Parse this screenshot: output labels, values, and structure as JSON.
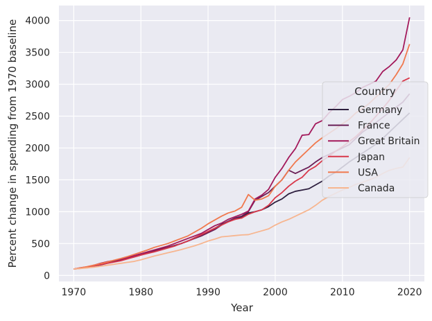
{
  "chart_data": {
    "type": "line",
    "title": "",
    "xlabel": "Year",
    "ylabel": "Percent change in spending from 1970 baseline",
    "xlim": [
      1967.8,
      2022.2
    ],
    "ylim": [
      -95,
      4235
    ],
    "x_ticks": [
      1970,
      1980,
      1990,
      2000,
      2010,
      2020
    ],
    "y_ticks": [
      0,
      500,
      1000,
      1500,
      2000,
      2500,
      3000,
      3500,
      4000
    ],
    "grid": true,
    "legend": {
      "title": "Country",
      "placement": "center-right"
    },
    "years": [
      1970,
      1971,
      1972,
      1973,
      1974,
      1975,
      1976,
      1977,
      1978,
      1979,
      1980,
      1981,
      1982,
      1983,
      1984,
      1985,
      1986,
      1987,
      1988,
      1989,
      1990,
      1991,
      1992,
      1993,
      1994,
      1995,
      1996,
      1997,
      1998,
      1999,
      2000,
      2001,
      2002,
      2003,
      2004,
      2005,
      2006,
      2007,
      2008,
      2009,
      2010,
      2011,
      2012,
      2013,
      2014,
      2015,
      2016,
      2017,
      2018,
      2019,
      2020
    ],
    "series": [
      {
        "name": "Germany",
        "color": "#2d1e3e",
        "values": [
          100,
          115,
          130,
          150,
          175,
          200,
          220,
          240,
          265,
          295,
          330,
          360,
          390,
          415,
          440,
          470,
          500,
          540,
          590,
          640,
          680,
          740,
          800,
          850,
          880,
          920,
          980,
          1000,
          1030,
          1080,
          1150,
          1200,
          1280,
          1320,
          1340,
          1360,
          1420,
          1480,
          1560,
          1620,
          1700,
          1780,
          1850,
          1920,
          1990,
          2060,
          2150,
          2250,
          2350,
          2450,
          2550
        ]
      },
      {
        "name": "France",
        "color": "#6a1f56",
        "values": [
          100,
          110,
          125,
          145,
          165,
          190,
          215,
          240,
          265,
          290,
          320,
          350,
          380,
          410,
          440,
          470,
          500,
          540,
          580,
          620,
          670,
          720,
          790,
          850,
          900,
          930,
          1000,
          1180,
          1240,
          1300,
          1400,
          1500,
          1650,
          1600,
          1650,
          1700,
          1780,
          1850,
          1900,
          1950,
          2000,
          2050,
          2150,
          2250,
          2320,
          2400,
          2480,
          2560,
          2640,
          2720,
          2850
        ]
      },
      {
        "name": "Great Britain",
        "color": "#a3195b",
        "values": [
          100,
          120,
          135,
          160,
          190,
          215,
          235,
          255,
          280,
          310,
          340,
          370,
          400,
          430,
          460,
          500,
          540,
          580,
          620,
          660,
          720,
          780,
          820,
          880,
          920,
          960,
          1010,
          1200,
          1260,
          1350,
          1540,
          1680,
          1850,
          1990,
          2200,
          2210,
          2380,
          2430,
          2550,
          2650,
          2760,
          2810,
          2870,
          2950,
          3000,
          3050,
          3200,
          3280,
          3380,
          3540,
          4050
        ]
      },
      {
        "name": "Japan",
        "color": "#d8374a",
        "values": [
          100,
          115,
          130,
          150,
          170,
          190,
          210,
          230,
          260,
          290,
          320,
          345,
          370,
          400,
          430,
          460,
          500,
          540,
          590,
          640,
          690,
          740,
          790,
          840,
          880,
          900,
          960,
          1000,
          1030,
          1100,
          1220,
          1300,
          1400,
          1480,
          1540,
          1650,
          1710,
          1800,
          1870,
          1950,
          2020,
          2100,
          2180,
          2280,
          2380,
          2500,
          2620,
          2750,
          2900,
          3050,
          3100
        ]
      },
      {
        "name": "USA",
        "color": "#f0784d",
        "values": [
          100,
          118,
          138,
          160,
          185,
          210,
          238,
          265,
          295,
          330,
          365,
          400,
          440,
          470,
          500,
          540,
          580,
          620,
          680,
          740,
          810,
          870,
          930,
          980,
          1010,
          1070,
          1270,
          1180,
          1200,
          1250,
          1400,
          1500,
          1650,
          1780,
          1880,
          1980,
          2080,
          2160,
          2230,
          2300,
          2380,
          2450,
          2550,
          2620,
          2700,
          2800,
          2900,
          3000,
          3150,
          3320,
          3630
        ]
      },
      {
        "name": "Canada",
        "color": "#f7b58f",
        "values": [
          100,
          108,
          118,
          130,
          145,
          160,
          175,
          190,
          205,
          220,
          245,
          275,
          305,
          330,
          355,
          380,
          405,
          435,
          465,
          500,
          540,
          570,
          605,
          615,
          625,
          635,
          640,
          670,
          700,
          730,
          790,
          840,
          880,
          930,
          980,
          1030,
          1100,
          1180,
          1240,
          1290,
          1340,
          1380,
          1430,
          1460,
          1500,
          1540,
          1600,
          1650,
          1680,
          1700,
          1850
        ]
      }
    ]
  }
}
